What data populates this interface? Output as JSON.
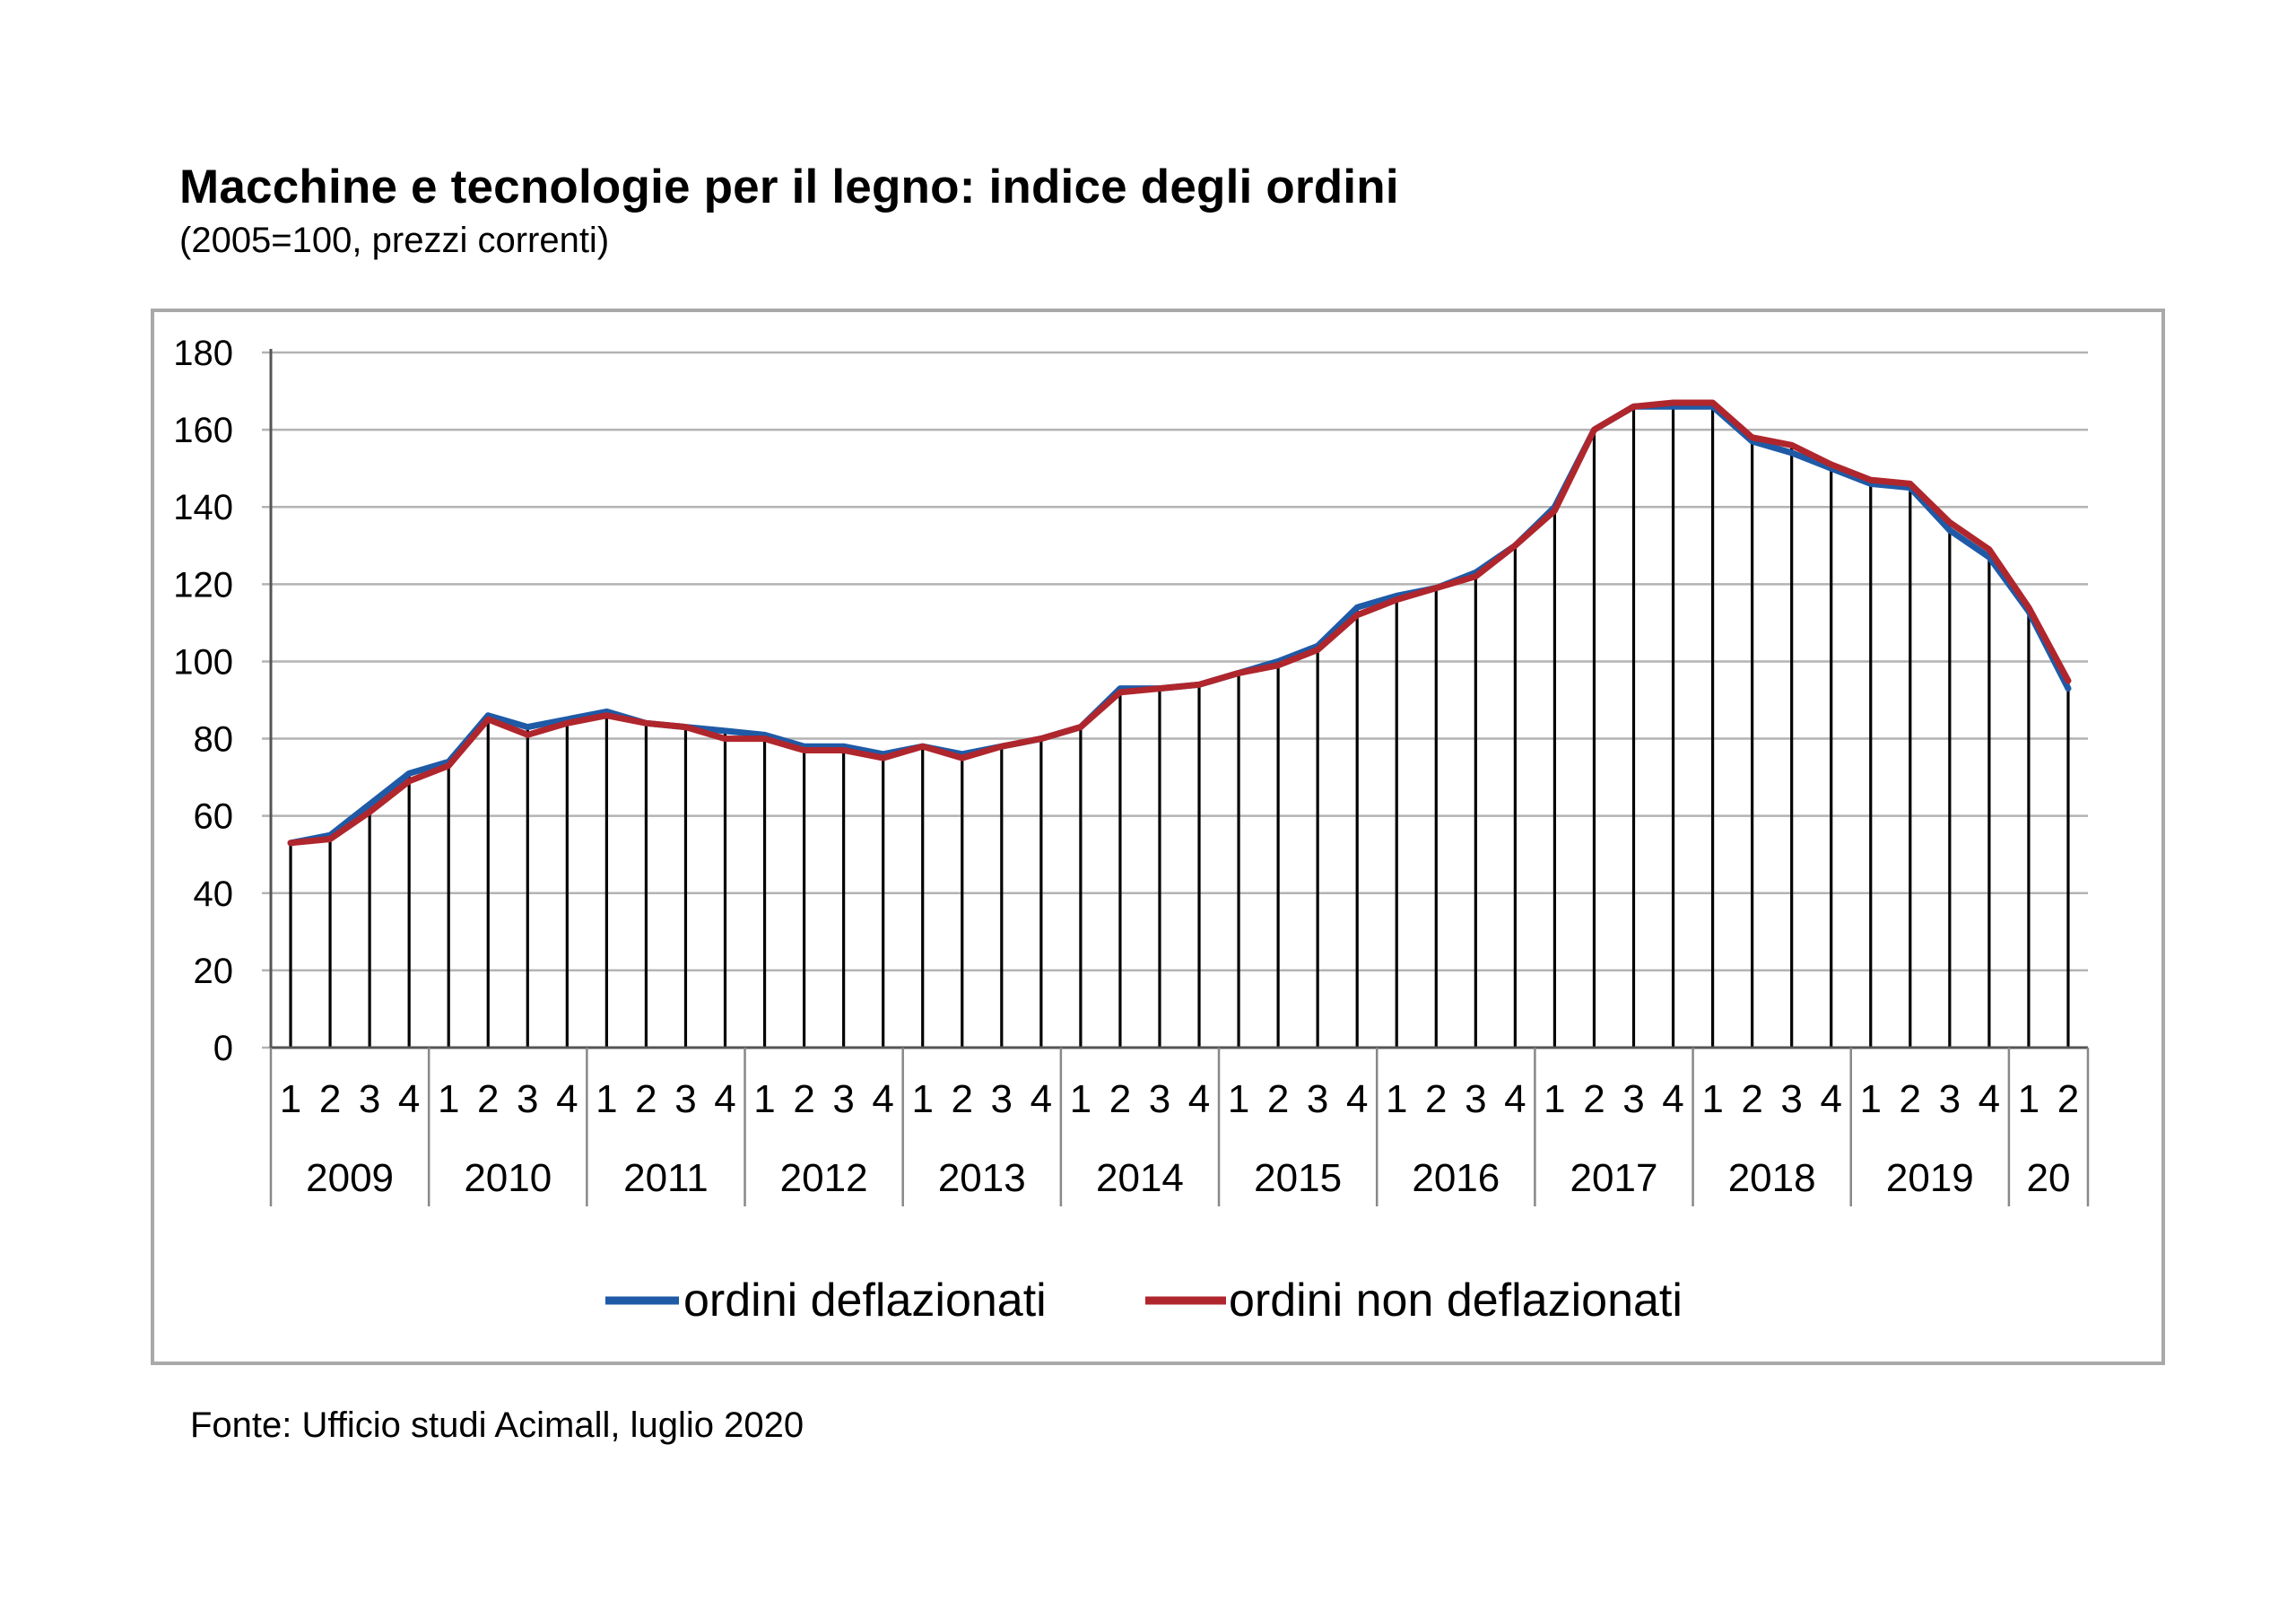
{
  "title": "Macchine e tecnologie per il legno: indice degli ordini",
  "subtitle": "(2005=100, prezzi correnti)",
  "source": "Fonte: Ufficio studi Acimall, luglio 2020",
  "chart_data": {
    "type": "line",
    "title": "Macchine e tecnologie per il legno: indice degli ordini",
    "subtitle": "(2005=100, prezzi correnti)",
    "x_quarters": [
      "1",
      "2",
      "3",
      "4",
      "1",
      "2",
      "3",
      "4",
      "1",
      "2",
      "3",
      "4",
      "1",
      "2",
      "3",
      "4",
      "1",
      "2",
      "3",
      "4",
      "1",
      "2",
      "3",
      "4",
      "1",
      "2",
      "3",
      "4",
      "1",
      "2",
      "3",
      "4",
      "1",
      "2",
      "3",
      "4",
      "1",
      "2",
      "3",
      "4",
      "1",
      "2",
      "3",
      "4",
      "1",
      "2"
    ],
    "year_groups": [
      {
        "label": "2009",
        "quarters": 4
      },
      {
        "label": "2010",
        "quarters": 4
      },
      {
        "label": "2011",
        "quarters": 4
      },
      {
        "label": "2012",
        "quarters": 4
      },
      {
        "label": "2013",
        "quarters": 4
      },
      {
        "label": "2014",
        "quarters": 4
      },
      {
        "label": "2015",
        "quarters": 4
      },
      {
        "label": "2016",
        "quarters": 4
      },
      {
        "label": "2017",
        "quarters": 4
      },
      {
        "label": "2018",
        "quarters": 4
      },
      {
        "label": "2019",
        "quarters": 4
      },
      {
        "label": "20",
        "quarters": 2
      }
    ],
    "yticks": [
      "0",
      "20",
      "40",
      "60",
      "80",
      "100",
      "120",
      "140",
      "160",
      "180"
    ],
    "ylim": [
      0,
      180
    ],
    "grid": true,
    "drop_lines": true,
    "legend_position": "bottom",
    "series": [
      {
        "name": "ordini deflazionati",
        "color": "#1f5aa6",
        "values": [
          53,
          55,
          63,
          71,
          74,
          86,
          83,
          85,
          87,
          84,
          83,
          82,
          81,
          78,
          78,
          76,
          78,
          76,
          78,
          80,
          83,
          93,
          93,
          94,
          97,
          100,
          104,
          114,
          117,
          119,
          123,
          130,
          140,
          160,
          166,
          166,
          166,
          157,
          154,
          150,
          146,
          145,
          134,
          127,
          113,
          93
        ]
      },
      {
        "name": "ordini non deflazionati",
        "color": "#b0262d",
        "values": [
          53,
          54,
          61,
          69,
          73,
          85,
          81,
          84,
          86,
          84,
          83,
          80,
          80,
          77,
          77,
          75,
          78,
          75,
          78,
          80,
          83,
          92,
          93,
          94,
          97,
          99,
          103,
          112,
          116,
          119,
          122,
          130,
          139,
          160,
          166,
          167,
          167,
          158,
          156,
          151,
          147,
          146,
          136,
          129,
          114,
          95
        ]
      }
    ]
  }
}
